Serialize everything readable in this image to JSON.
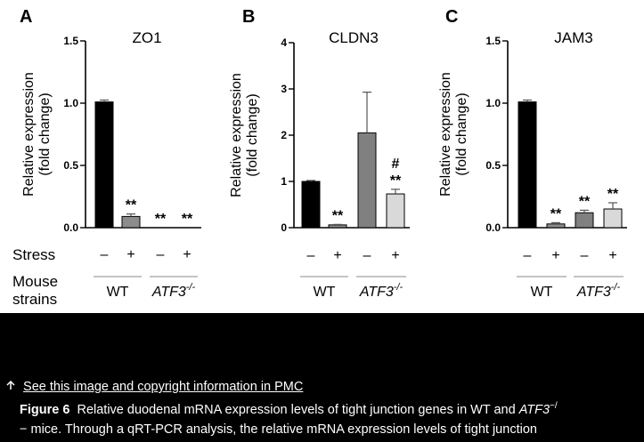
{
  "figure": {
    "row_labels": {
      "stress": "Stress",
      "mouse_line1": "Mouse",
      "mouse_line2": "strains"
    },
    "group_labels": {
      "wt": "WT",
      "atf3": "ATF3",
      "atf3_sup": "-/-"
    },
    "stress_signs": [
      "–",
      "+",
      "–",
      "+"
    ]
  },
  "chart_data": [
    {
      "panel": "A",
      "type": "bar",
      "title": "ZO1",
      "ylabel_line1": "Relative expression",
      "ylabel_line2": "(fold change)",
      "ylim": [
        0,
        1.5
      ],
      "yticks": [
        "0.0",
        "0.5",
        "1.0",
        "1.5"
      ],
      "ytick_values": [
        0,
        0.5,
        1.0,
        1.5
      ],
      "categories": [
        "WT –",
        "WT +",
        "ATF3-/- –",
        "ATF3-/- +"
      ],
      "values": [
        1.01,
        0.09,
        0.0,
        0.0
      ],
      "errors": [
        0.015,
        0.02,
        0,
        0
      ],
      "colors": [
        "#000000",
        "#8c8c8c",
        "#555555",
        "#cfcfcf"
      ],
      "annotations": [
        "",
        "**",
        "**",
        "**"
      ]
    },
    {
      "panel": "B",
      "type": "bar",
      "title": "CLDN3",
      "ylabel_line1": "Relative expression",
      "ylabel_line2": "(fold change)",
      "ylim": [
        0,
        4
      ],
      "yticks": [
        "0",
        "1",
        "2",
        "3",
        "4"
      ],
      "ytick_values": [
        0,
        1,
        2,
        3,
        4
      ],
      "categories": [
        "WT –",
        "WT +",
        "ATF3-/- –",
        "ATF3-/- +"
      ],
      "values": [
        1.0,
        0.06,
        2.05,
        0.73
      ],
      "errors": [
        0.02,
        0.01,
        0.88,
        0.1
      ],
      "colors": [
        "#000000",
        "#8c8c8c",
        "#808080",
        "#d9d9d9"
      ],
      "annotations": [
        "",
        "**",
        "",
        "**"
      ],
      "extra_annotations": [
        "",
        "",
        "",
        "#"
      ]
    },
    {
      "panel": "C",
      "type": "bar",
      "title": "JAM3",
      "ylabel_line1": "Relative expression",
      "ylabel_line2": "(fold change)",
      "ylim": [
        0,
        1.5
      ],
      "yticks": [
        "0.0",
        "0.5",
        "1.0",
        "1.5"
      ],
      "ytick_values": [
        0,
        0.5,
        1.0,
        1.5
      ],
      "categories": [
        "WT –",
        "WT +",
        "ATF3-/- –",
        "ATF3-/- +"
      ],
      "values": [
        1.01,
        0.03,
        0.12,
        0.15
      ],
      "errors": [
        0.015,
        0.01,
        0.02,
        0.05
      ],
      "colors": [
        "#000000",
        "#8c8c8c",
        "#808080",
        "#d9d9d9"
      ],
      "annotations": [
        "",
        "**",
        "**",
        "**"
      ]
    }
  ],
  "caption": {
    "link_text": "See this image and copyright information in PMC",
    "fig_label": "Figure 6",
    "text1": "Relative duodenal mRNA expression levels of tight junction genes in WT and ",
    "gene": "ATF3",
    "gene_sup": "−/",
    "text2": "− mice. Through a qRT-PCR analysis, the relative mRNA expression levels of tight junction"
  }
}
